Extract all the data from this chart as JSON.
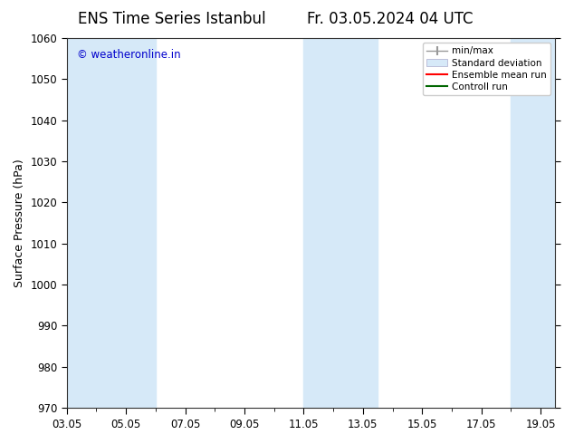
{
  "title": "ENS Time Series Istanbul",
  "title2": "Fr. 03.05.2024 04 UTC",
  "ylabel": "Surface Pressure (hPa)",
  "ylim": [
    970,
    1060
  ],
  "yticks": [
    970,
    980,
    990,
    1000,
    1010,
    1020,
    1030,
    1040,
    1050,
    1060
  ],
  "xtick_labels": [
    "03.05",
    "05.05",
    "07.05",
    "09.05",
    "11.05",
    "13.05",
    "15.05",
    "17.05",
    "19.05"
  ],
  "xtick_positions": [
    3,
    5,
    7,
    9,
    11,
    13,
    15,
    17,
    19
  ],
  "bg_color": "#ffffff",
  "plot_bg_color": "#ffffff",
  "shaded_bands": [
    {
      "x_start": 3.0,
      "x_end": 6.0,
      "color": "#d6e9f8"
    },
    {
      "x_start": 11.0,
      "x_end": 13.5,
      "color": "#d6e9f8"
    },
    {
      "x_start": 18.0,
      "x_end": 19.5,
      "color": "#d6e9f8"
    }
  ],
  "xmin": 3.0,
  "xmax": 19.5,
  "copyright_text": "© weatheronline.in",
  "copyright_color": "#0000cc",
  "legend_items": [
    {
      "label": "min/max",
      "color": "#aaaaaa",
      "lw": 1.5
    },
    {
      "label": "Standard deviation",
      "color": "#d6e9f8",
      "lw": 6
    },
    {
      "label": "Ensemble mean run",
      "color": "#ff0000",
      "lw": 1.5
    },
    {
      "label": "Controll run",
      "color": "#006600",
      "lw": 1.5
    }
  ],
  "title_fontsize": 12,
  "axis_label_fontsize": 9,
  "tick_fontsize": 8.5
}
